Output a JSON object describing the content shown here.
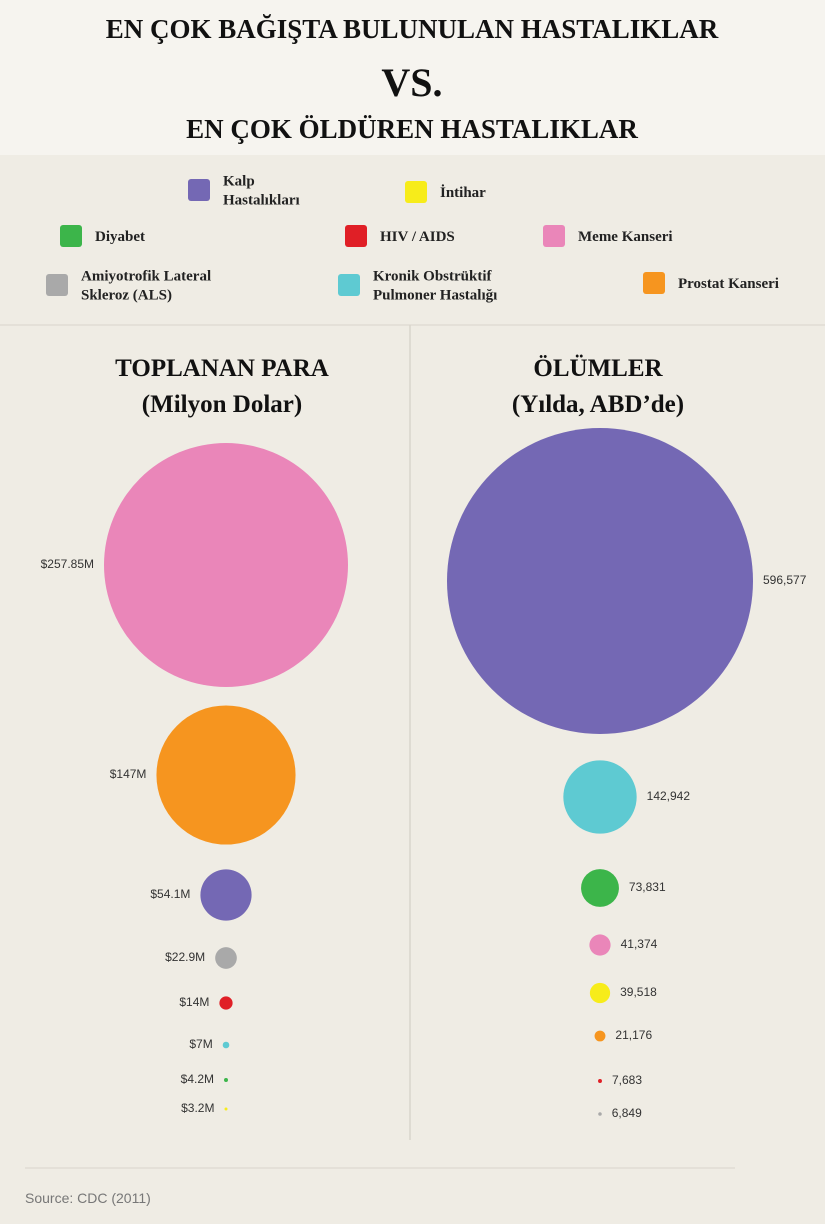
{
  "title": [
    "EN ÇOK BAĞIŞTA BULUNULAN HASTALIKLAR",
    "VS.",
    "EN ÇOK ÖLDÜREN HASTALIKLAR"
  ],
  "legend": [
    {
      "name": [
        "Kalp",
        "Hastalıkları"
      ],
      "color": "#7468b4"
    },
    {
      "name": [
        "İntihar"
      ],
      "color": "#f7ec1a"
    },
    {
      "name": [
        "Diyabet"
      ],
      "color": "#3cb54a"
    },
    {
      "name": [
        "HIV / AIDS"
      ],
      "color": "#e01f26"
    },
    {
      "name": [
        "Meme Kanseri"
      ],
      "color": "#ea86b9"
    },
    {
      "name": [
        "Amiyotrofik Lateral",
        "Skleroz (ALS)"
      ],
      "color": "#a9a9a9"
    },
    {
      "name": [
        "Kronik Obstrüktif",
        "Pulmoner Hastalığı"
      ],
      "color": "#5ecad2"
    },
    {
      "name": [
        "Prostat Kanseri"
      ],
      "color": "#f6951f"
    }
  ],
  "chart_data": [
    {
      "type": "bubble",
      "title": "TOPLANAN PARA",
      "subtitle": "(Milyon Dolar)",
      "values": [
        257.85,
        147,
        54.1,
        22.9,
        14,
        7,
        4.2,
        3.2
      ],
      "value_labels": [
        "$257.85M",
        "$147M",
        "$54.1M",
        "$22.9M",
        "$14M",
        "$7M",
        "$4.2M",
        "$3.2M"
      ],
      "colors": [
        "#ea86b9",
        "#f6951f",
        "#7468b4",
        "#a9a9a9",
        "#e01f26",
        "#5ecad2",
        "#3cb54a",
        "#f7ec1a"
      ]
    },
    {
      "type": "bubble",
      "title": "ÖLÜMLER",
      "subtitle": "(Yılda, ABD’de)",
      "values": [
        596577,
        142942,
        73831,
        41374,
        39518,
        21176,
        7683,
        6849
      ],
      "value_labels": [
        "596,577",
        "142,942",
        "73,831",
        "41,374",
        "39,518",
        "21,176",
        "7,683",
        "6,849"
      ],
      "colors": [
        "#7468b4",
        "#5ecad2",
        "#3cb54a",
        "#ea86b9",
        "#f7ec1a",
        "#f6951f",
        "#e01f26",
        "#a9a9a9"
      ]
    }
  ],
  "source": "Source: CDC (2011)"
}
